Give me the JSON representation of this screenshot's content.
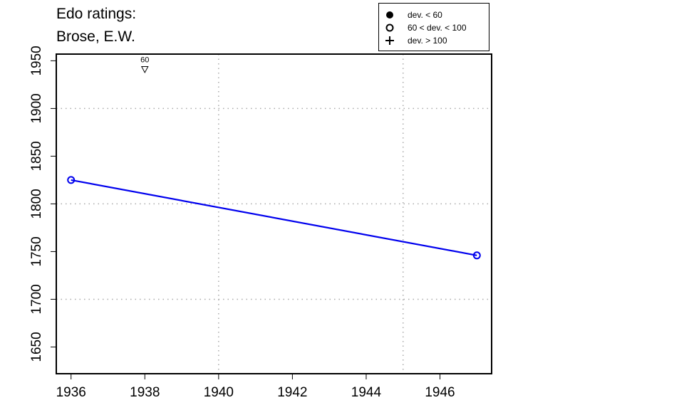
{
  "title_line1": "Edo ratings:",
  "title_line2": "Brose, E.W.",
  "legend": [
    {
      "label": "dev. < 60",
      "symbol": "filled-circle"
    },
    {
      "label": "60 < dev. < 100",
      "symbol": "open-circle"
    },
    {
      "label": "dev. > 100",
      "symbol": "plus"
    }
  ],
  "colors": {
    "series": "#0000ee",
    "grid": "#aaaaaa",
    "axis": "#000000"
  },
  "chart_data": {
    "type": "line",
    "title": "Edo ratings: Brose, E.W.",
    "xlabel": "",
    "ylabel": "",
    "xlim": [
      1935.6,
      1947.4
    ],
    "ylim": [
      1622,
      1957
    ],
    "xticks": [
      1936,
      1938,
      1940,
      1942,
      1944,
      1946
    ],
    "yticks": [
      1650,
      1700,
      1750,
      1800,
      1850,
      1900,
      1950
    ],
    "xgrid": [
      1940,
      1945
    ],
    "ygrid": [
      1700,
      1800,
      1900
    ],
    "series": [
      {
        "points": [
          {
            "x": 1936,
            "y": 1825
          },
          {
            "x": 1947,
            "y": 1746
          }
        ],
        "marker": "open-circle"
      }
    ],
    "annotations": [
      {
        "x": 1938,
        "y": 1941,
        "marker": "down-triangle",
        "label": "60"
      }
    ],
    "legend_position": "top-right"
  }
}
